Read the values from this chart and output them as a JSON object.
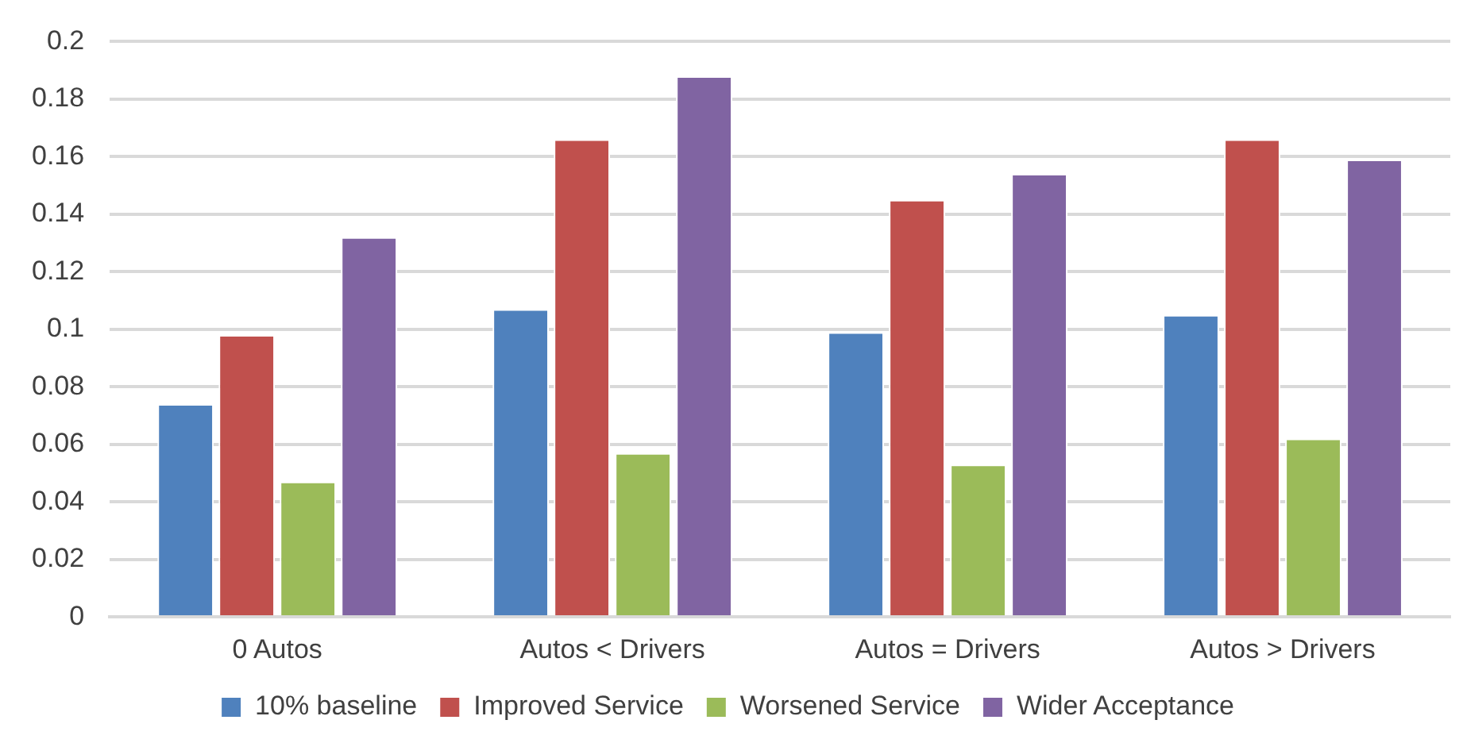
{
  "chart_data": {
    "type": "bar",
    "categories": [
      "0 Autos",
      "Autos < Drivers",
      "Autos = Drivers",
      "Autos > Drivers"
    ],
    "series": [
      {
        "name": "10% baseline",
        "color": "#4f81bd",
        "values": [
          0.074,
          0.107,
          0.099,
          0.105
        ]
      },
      {
        "name": "Improved Service",
        "color": "#c0504d",
        "values": [
          0.098,
          0.166,
          0.145,
          0.166
        ]
      },
      {
        "name": "Worsened Service",
        "color": "#9bbb59",
        "values": [
          0.047,
          0.057,
          0.053,
          0.062
        ]
      },
      {
        "name": "Wider Acceptance",
        "color": "#8064a2",
        "values": [
          0.132,
          0.188,
          0.154,
          0.159
        ]
      }
    ],
    "ylim": [
      0,
      0.2
    ],
    "yticks": [
      0,
      0.02,
      0.04,
      0.06,
      0.08,
      0.1,
      0.12,
      0.14,
      0.16,
      0.18,
      0.2
    ],
    "grid": "y",
    "legend": "bottom"
  }
}
